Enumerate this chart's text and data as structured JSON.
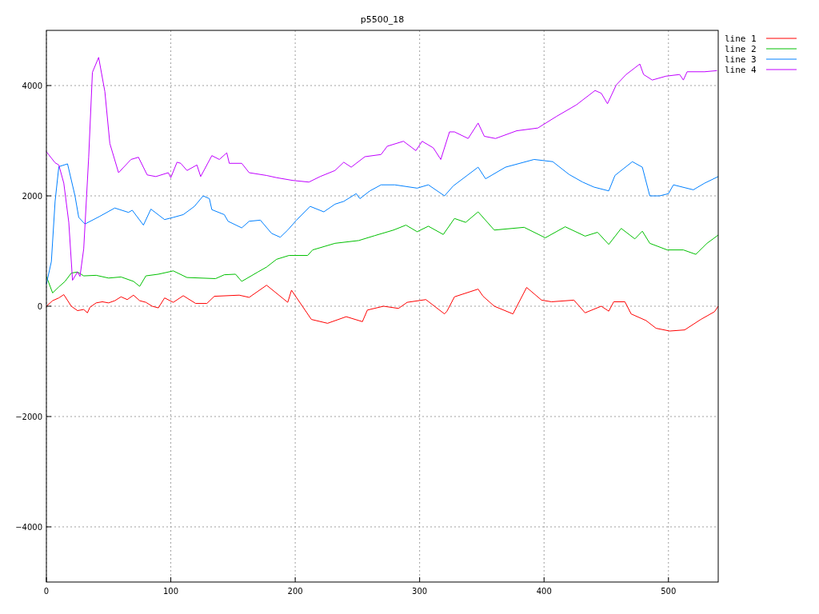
{
  "chart_data": {
    "type": "line",
    "title": "p5500_18",
    "xlim": [
      0,
      540
    ],
    "ylim": [
      -5000,
      5000
    ],
    "xticks": [
      0,
      100,
      200,
      300,
      400,
      500
    ],
    "yticks": [
      -4000,
      -2000,
      0,
      2000,
      4000
    ],
    "grid": true,
    "legend": "top right",
    "line_style": "solid",
    "series": [
      {
        "name": "line 1",
        "color": "#ff0000",
        "x": [
          0,
          5,
          10,
          14,
          20,
          25,
          30,
          33,
          35,
          40,
          45,
          50,
          55,
          60,
          65,
          70,
          75,
          80,
          85,
          90,
          95,
          102,
          110,
          120,
          129,
          135,
          155,
          163,
          177,
          194,
          197,
          213,
          226,
          241,
          254,
          258,
          271,
          283,
          290,
          305,
          320,
          322,
          328,
          347,
          351,
          360,
          375,
          386,
          398,
          406,
          424,
          433,
          446,
          452,
          456,
          465,
          470,
          482,
          490,
          501,
          513,
          526,
          537,
          540
        ],
        "values": [
          0,
          100,
          150,
          210,
          0,
          -80,
          -60,
          -120,
          -20,
          60,
          80,
          60,
          100,
          170,
          120,
          200,
          100,
          70,
          0,
          -30,
          150,
          70,
          190,
          50,
          50,
          180,
          200,
          160,
          380,
          70,
          290,
          -240,
          -310,
          -190,
          -280,
          -70,
          0,
          -40,
          70,
          120,
          -140,
          -90,
          170,
          310,
          180,
          0,
          -140,
          340,
          110,
          80,
          110,
          -120,
          0,
          -90,
          80,
          80,
          -140,
          -260,
          -400,
          -450,
          -430,
          -240,
          -100,
          0
        ]
      },
      {
        "name": "line 2",
        "color": "#00c000",
        "x": [
          0,
          5,
          10,
          15,
          20,
          25,
          30,
          40,
          50,
          60,
          70,
          75,
          80,
          90,
          102,
          113,
          136,
          143,
          152,
          157,
          170,
          177,
          185,
          195,
          210,
          214,
          232,
          251,
          264,
          279,
          289,
          298,
          307,
          319,
          328,
          337,
          347,
          360,
          384,
          401,
          417,
          433,
          443,
          452,
          462,
          473,
          479,
          485,
          499,
          512,
          522,
          531,
          540
        ],
        "values": [
          540,
          240,
          350,
          450,
          600,
          620,
          550,
          560,
          510,
          530,
          450,
          360,
          550,
          580,
          640,
          520,
          500,
          570,
          580,
          450,
          620,
          710,
          850,
          920,
          920,
          1020,
          1140,
          1190,
          1280,
          1380,
          1470,
          1350,
          1450,
          1300,
          1590,
          1520,
          1710,
          1380,
          1430,
          1240,
          1440,
          1270,
          1340,
          1120,
          1410,
          1220,
          1360,
          1140,
          1020,
          1020,
          940,
          1140,
          1290
        ]
      },
      {
        "name": "line 3",
        "color": "#0080ff",
        "x": [
          0,
          4,
          7,
          10,
          17,
          23,
          26,
          31,
          43,
          55,
          66,
          69,
          78,
          84,
          95,
          102,
          110,
          119,
          126,
          131,
          133,
          143,
          146,
          157,
          163,
          172,
          181,
          188,
          194,
          201,
          212,
          223,
          232,
          239,
          249,
          252,
          260,
          269,
          280,
          298,
          307,
          320,
          327,
          347,
          353,
          369,
          392,
          407,
          420,
          431,
          440,
          452,
          457,
          471,
          479,
          485,
          493,
          500,
          504,
          520,
          529,
          540
        ],
        "values": [
          400,
          810,
          1900,
          2530,
          2580,
          2000,
          1610,
          1490,
          1630,
          1780,
          1700,
          1740,
          1470,
          1760,
          1570,
          1610,
          1660,
          1810,
          2000,
          1950,
          1750,
          1660,
          1540,
          1420,
          1540,
          1560,
          1320,
          1250,
          1380,
          1560,
          1810,
          1710,
          1850,
          1900,
          2040,
          1950,
          2090,
          2200,
          2200,
          2140,
          2200,
          2000,
          2180,
          2520,
          2310,
          2520,
          2660,
          2620,
          2390,
          2250,
          2160,
          2090,
          2370,
          2620,
          2520,
          2000,
          2000,
          2040,
          2200,
          2110,
          2230,
          2350
        ]
      },
      {
        "name": "line 4",
        "color": "#c000ff",
        "x": [
          0,
          7,
          10,
          14,
          18,
          21,
          25,
          27,
          30,
          34,
          37,
          42,
          47,
          51,
          58,
          68,
          74,
          81,
          88,
          98,
          100,
          105,
          108,
          113,
          121,
          124,
          133,
          139,
          145,
          147,
          157,
          163,
          177,
          185,
          198,
          211,
          220,
          232,
          239,
          245,
          256,
          269,
          274,
          287,
          297,
          302,
          311,
          317,
          324,
          328,
          339,
          347,
          352,
          361,
          378,
          395,
          410,
          426,
          441,
          446,
          451,
          458,
          466,
          477,
          480,
          487,
          498,
          509,
          512,
          515,
          529,
          539
        ],
        "values": [
          2800,
          2600,
          2560,
          2230,
          1520,
          470,
          620,
          540,
          1040,
          2700,
          4240,
          4510,
          3890,
          2950,
          2420,
          2660,
          2700,
          2380,
          2350,
          2420,
          2330,
          2610,
          2590,
          2460,
          2560,
          2350,
          2730,
          2660,
          2780,
          2590,
          2590,
          2420,
          2370,
          2330,
          2280,
          2250,
          2350,
          2460,
          2610,
          2520,
          2710,
          2750,
          2900,
          2990,
          2820,
          2990,
          2870,
          2660,
          3160,
          3160,
          3040,
          3320,
          3080,
          3040,
          3180,
          3230,
          3440,
          3650,
          3910,
          3860,
          3670,
          4010,
          4200,
          4390,
          4200,
          4100,
          4170,
          4200,
          4100,
          4250,
          4250,
          4270
        ]
      }
    ]
  }
}
